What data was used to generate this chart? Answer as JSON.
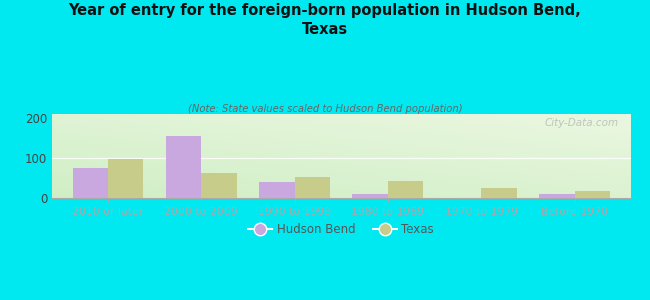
{
  "categories": [
    "2010 or later",
    "2000 to 2009",
    "1990 to 1999",
    "1980 to 1989",
    "1970 to 1979",
    "Before 1970"
  ],
  "hudson_bend": [
    75,
    155,
    40,
    10,
    0,
    10
  ],
  "texas": [
    97,
    63,
    52,
    42,
    25,
    18
  ],
  "hudson_bend_color": "#c9a8e0",
  "texas_color": "#c8cc8a",
  "title": "Year of entry for the foreign-born population in Hudson Bend,\nTexas",
  "subtitle": "(Note: State values scaled to Hudson Bend population)",
  "background_outer": "#00e8f0",
  "ylim": [
    0,
    210
  ],
  "yticks": [
    0,
    100,
    200
  ],
  "bar_width": 0.38,
  "watermark": "City-Data.com",
  "legend_labels": [
    "Hudson Bend",
    "Texas"
  ]
}
